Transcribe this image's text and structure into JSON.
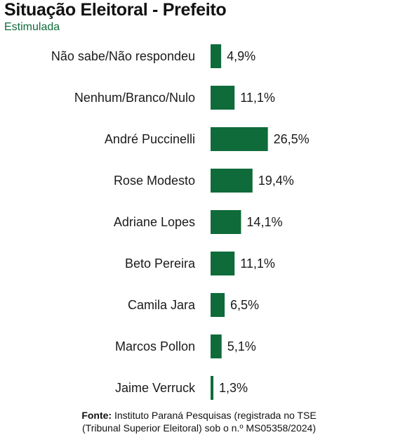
{
  "header": {
    "title": "Situação Eleitoral - Prefeito",
    "subtitle": "Estimulada"
  },
  "colors": {
    "bar": "#0f6b3a",
    "subtitle": "#0f6b3a",
    "text": "#1a1a1a"
  },
  "chart_data": {
    "type": "bar",
    "orientation": "horizontal",
    "title": "Situação Eleitoral - Prefeito",
    "subtitle": "Estimulada",
    "categories": [
      "Não sabe/Não respondeu",
      "Nenhum/Branco/Nulo",
      "André Puccinelli",
      "Rose Modesto",
      "Adriane Lopes",
      "Beto Pereira",
      "Camila Jara",
      "Marcos Pollon",
      "Jaime Verruck"
    ],
    "values": [
      4.9,
      11.1,
      26.5,
      19.4,
      14.1,
      11.1,
      6.5,
      5.1,
      1.3
    ],
    "value_labels": [
      "4,9%",
      "11,1%",
      "26,5%",
      "19,4%",
      "14,1%",
      "11,1%",
      "6,5%",
      "5,1%",
      "1,3%"
    ],
    "unit": "%",
    "grid": false,
    "legend": "none"
  },
  "footer": {
    "fonte_label": "Fonte:",
    "line1": " Instituto Paraná Pesquisas (registrada no TSE",
    "line2": "(Tribunal Superior Eleitoral) sob o n.º MS05358/2024)"
  }
}
